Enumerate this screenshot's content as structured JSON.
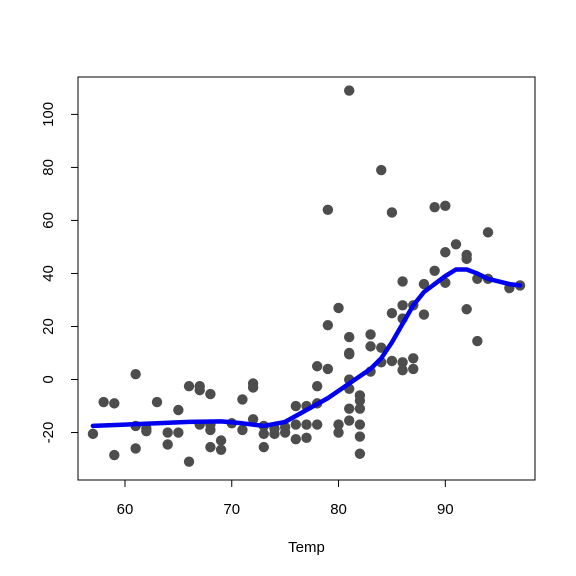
{
  "chart_data": {
    "type": "scatter",
    "title": "",
    "xlabel": "Temp",
    "ylabel": "",
    "xlim": [
      55.6,
      98.4
    ],
    "ylim": [
      -37.9,
      114.1
    ],
    "x_ticks": [
      60,
      70,
      80,
      90
    ],
    "y_ticks": [
      -20,
      0,
      20,
      40,
      60,
      80,
      100
    ],
    "grid": false,
    "legend": "none",
    "colors": {
      "points": "#4d4d4d",
      "smooth_line": "#0000ee",
      "axes": "#000000"
    },
    "series": [
      {
        "type": "points",
        "values": [
          [
            57,
            -20.5
          ],
          [
            58,
            -8.5
          ],
          [
            59,
            -28.5
          ],
          [
            59,
            -9
          ],
          [
            61,
            2
          ],
          [
            61,
            -17.5
          ],
          [
            61,
            -26
          ],
          [
            62,
            -19.5
          ],
          [
            62,
            -18.5
          ],
          [
            63,
            -8.5
          ],
          [
            64,
            -24.5
          ],
          [
            64,
            -20
          ],
          [
            65,
            -11.5
          ],
          [
            65,
            -20
          ],
          [
            66,
            -2.5
          ],
          [
            66,
            -31
          ],
          [
            67,
            -2.5
          ],
          [
            67,
            -4
          ],
          [
            67,
            -17
          ],
          [
            68,
            -5.5
          ],
          [
            68,
            -19
          ],
          [
            68,
            -17
          ],
          [
            68,
            -25.5
          ],
          [
            69,
            -23
          ],
          [
            69,
            -26.5
          ],
          [
            70,
            -16.5
          ],
          [
            71,
            -7.5
          ],
          [
            71,
            -19
          ],
          [
            72,
            -1.5
          ],
          [
            72,
            -3
          ],
          [
            72,
            -15
          ],
          [
            73,
            -20.5
          ],
          [
            73,
            -25.5
          ],
          [
            73,
            -17.5
          ],
          [
            74,
            -20.5
          ],
          [
            74,
            -18.5
          ],
          [
            75,
            -20
          ],
          [
            75,
            -18
          ],
          [
            76,
            -10
          ],
          [
            76,
            -17
          ],
          [
            76,
            -22.5
          ],
          [
            77,
            -10
          ],
          [
            77,
            -22
          ],
          [
            77,
            -17
          ],
          [
            78,
            -2.5
          ],
          [
            78,
            5
          ],
          [
            78,
            -9
          ],
          [
            78,
            -17
          ],
          [
            79,
            64
          ],
          [
            79,
            20.5
          ],
          [
            79,
            4
          ],
          [
            80,
            27
          ],
          [
            80,
            -17
          ],
          [
            80,
            -20
          ],
          [
            81,
            109
          ],
          [
            81,
            16
          ],
          [
            81,
            10
          ],
          [
            81,
            9.5
          ],
          [
            81,
            0
          ],
          [
            81,
            -11
          ],
          [
            81,
            -15.5
          ],
          [
            81,
            -3.5
          ],
          [
            82,
            -6
          ],
          [
            82,
            -8
          ],
          [
            82,
            -11
          ],
          [
            82,
            -17
          ],
          [
            82,
            -21.5
          ],
          [
            82,
            -28
          ],
          [
            83,
            17
          ],
          [
            83,
            12.5
          ],
          [
            83,
            3
          ],
          [
            84,
            79
          ],
          [
            84,
            12
          ],
          [
            84,
            6.5
          ],
          [
            85,
            63
          ],
          [
            85,
            25
          ],
          [
            85,
            7
          ],
          [
            86,
            37
          ],
          [
            86,
            28
          ],
          [
            86,
            23
          ],
          [
            86,
            6.5
          ],
          [
            86,
            3.5
          ],
          [
            87,
            28
          ],
          [
            87,
            8
          ],
          [
            87,
            4
          ],
          [
            88,
            36
          ],
          [
            88,
            24.5
          ],
          [
            89,
            65
          ],
          [
            89,
            41
          ],
          [
            90,
            65.5
          ],
          [
            90,
            48
          ],
          [
            90,
            36.5
          ],
          [
            91,
            51
          ],
          [
            92,
            47
          ],
          [
            92,
            45.5
          ],
          [
            92,
            26.5
          ],
          [
            93,
            38
          ],
          [
            93,
            14.5
          ],
          [
            94,
            55.5
          ],
          [
            94,
            38
          ],
          [
            96,
            34.5
          ],
          [
            97,
            35.5
          ]
        ]
      },
      {
        "type": "smooth_line",
        "values": [
          [
            57,
            -17.5
          ],
          [
            60,
            -17
          ],
          [
            63,
            -16.5
          ],
          [
            66,
            -16
          ],
          [
            69,
            -15.8
          ],
          [
            71,
            -16.5
          ],
          [
            73,
            -17.5
          ],
          [
            75,
            -16
          ],
          [
            77,
            -11.5
          ],
          [
            79,
            -7
          ],
          [
            81,
            -1.5
          ],
          [
            83,
            4
          ],
          [
            84,
            8
          ],
          [
            85,
            14
          ],
          [
            86,
            21
          ],
          [
            87,
            28
          ],
          [
            88,
            33
          ],
          [
            89,
            36
          ],
          [
            90,
            39
          ],
          [
            91,
            41.5
          ],
          [
            92,
            41.5
          ],
          [
            93,
            40
          ],
          [
            94,
            38
          ],
          [
            95,
            37
          ],
          [
            96,
            36
          ],
          [
            97,
            35.5
          ]
        ]
      }
    ]
  }
}
